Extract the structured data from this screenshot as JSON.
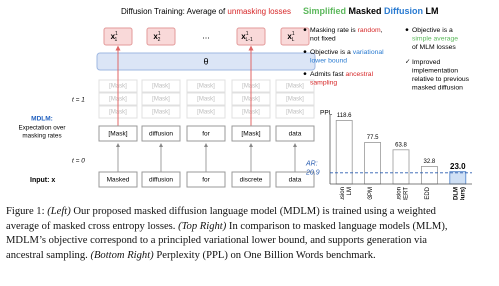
{
  "diagram": {
    "title": [
      {
        "text": "Diffusion Training: Average of "
      },
      {
        "text": "unmasking losses",
        "color": "#d62728"
      }
    ],
    "outputs": [
      {
        "base": "x",
        "sub": "1",
        "sup": "1"
      },
      {
        "base": "x",
        "sub": "2",
        "sup": "1"
      },
      "...",
      {
        "base": "x",
        "sub": "L-1",
        "sup": "1"
      },
      {
        "base": "x",
        "sub": "L",
        "sup": "1"
      }
    ],
    "model": "θ",
    "t1": "t = 1",
    "t0": "t = 0",
    "stack_token": "[Mask]",
    "masked": [
      "[Mask]",
      "diffusion",
      "for",
      "[Mask]",
      "data"
    ],
    "input_label": "Input: x",
    "input": [
      "Masked",
      "diffusion",
      "for",
      "discrete",
      "data"
    ],
    "mdlm": {
      "name": "MDLM:",
      "color": "#1f5fbf",
      "lines": [
        "Expectation over",
        "masking rates"
      ]
    }
  },
  "summary": {
    "title": [
      {
        "text": "Simplified",
        "color": "#5cb85c"
      },
      {
        "text": " Masked "
      },
      {
        "text": "Diffusion",
        "color": "#2a7bd1"
      },
      {
        "text": " LM"
      }
    ],
    "bullets_left": [
      [
        [
          {
            "text": "Masking rate is "
          },
          {
            "text": "random",
            "color": "#d62728"
          },
          {
            "text": ","
          }
        ],
        [
          {
            "text": "not fixed"
          }
        ]
      ],
      [
        [
          {
            "text": "Objective is a "
          },
          {
            "text": "variational",
            "color": "#2a7bd1"
          }
        ],
        [
          {
            "text": "lower bound",
            "color": "#2a7bd1"
          }
        ]
      ],
      [
        [
          {
            "text": "Admits fast "
          },
          {
            "text": "ancestral",
            "color": "#d62728"
          }
        ],
        [
          {
            "text": "sampling",
            "color": "#d62728"
          }
        ]
      ]
    ],
    "bullets_right": [
      [
        [
          {
            "text": "Objective is a"
          }
        ],
        [
          {
            "text": "simple average",
            "color": "#5cb85c"
          }
        ],
        [
          {
            "text": "of MLM losses"
          }
        ]
      ],
      [
        [
          {
            "text": "Improved"
          }
        ],
        [
          {
            "text": "implementation"
          }
        ],
        [
          {
            "text": "relative to previous"
          }
        ],
        [
          {
            "text": "masked diffusion"
          }
        ]
      ]
    ]
  },
  "chart_data": {
    "type": "bar",
    "y_label": "PPL",
    "categories": [
      [
        "Diffusion",
        "LM"
      ],
      [
        "D3PM"
      ],
      [
        "Diffusion",
        "BERT"
      ],
      [
        "SEDD"
      ],
      [
        "MDLM",
        "(Ours)"
      ]
    ],
    "values": [
      118.6,
      77.5,
      63.8,
      32.8,
      23.0
    ],
    "value_labels": [
      "118.6",
      "77.5",
      "63.8",
      "32.8",
      "23.0"
    ],
    "colors": [
      "#ffffff",
      "#ffffff",
      "#ffffff",
      "#ffffff",
      "#cfe0f5"
    ],
    "highlight": 4,
    "ylim": [
      0,
      125
    ],
    "reference": {
      "label": "AR:",
      "value": 20.9,
      "color": "#2a5db0"
    }
  },
  "caption": [
    [
      {
        "text": "Figure 1: "
      },
      {
        "text": "(Left)",
        "italic": true
      },
      {
        "text": " Our proposed masked diffusion language model (MDLM) is trained using a weighted"
      }
    ],
    [
      {
        "text": "average of masked cross entropy losses. "
      },
      {
        "text": "(Top Right)",
        "italic": true
      },
      {
        "text": " In comparison to masked language models (MLM),"
      }
    ],
    [
      {
        "text": "MDLM’s objective correspond to a principled variational lower bound, and supports generation via"
      }
    ],
    [
      {
        "text": "ancestral sampling. "
      },
      {
        "text": "(Bottom Right)",
        "italic": true
      },
      {
        "text": " Perplexity (PPL) on One Billion Words benchmark."
      }
    ]
  ]
}
